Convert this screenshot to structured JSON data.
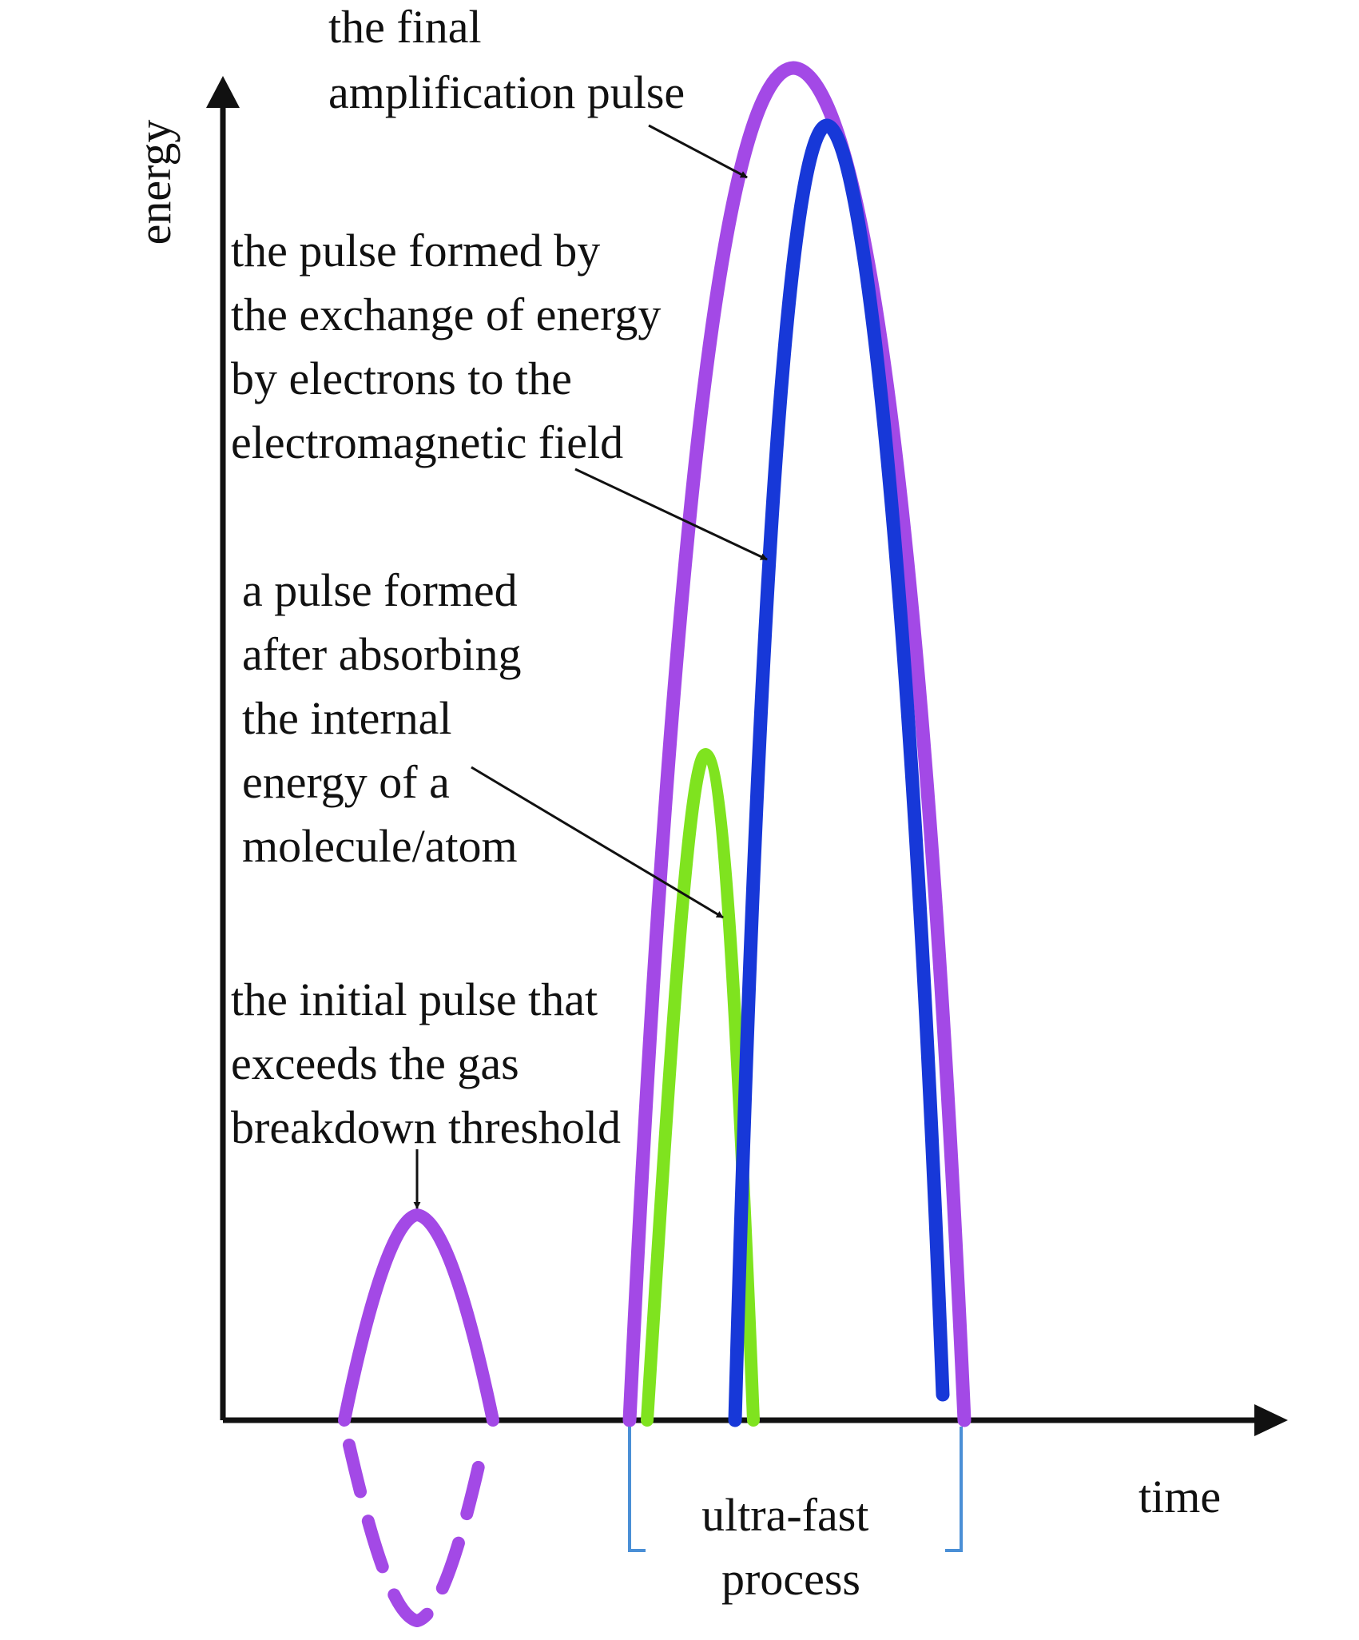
{
  "axes": {
    "y_label": "energy",
    "x_label": "time"
  },
  "annotations": {
    "final_pulse": [
      "the final",
      "amplification pulse"
    ],
    "exchange_pulse": [
      "the pulse formed by",
      "the exchange of energy",
      "by electrons to the",
      "electromagnetic field"
    ],
    "absorbed_pulse": [
      "a pulse formed",
      "after absorbing",
      "the internal",
      "energy of a",
      "molecule/atom"
    ],
    "initial_pulse": [
      "the initial pulse that",
      "exceeds the gas",
      "breakdown threshold"
    ],
    "ultrafast": [
      "ultra-fast",
      "process"
    ]
  },
  "colors": {
    "axis": "#111111",
    "final_pulse": "#a349e6",
    "initial_pulse": "#a349e6",
    "exchange_pulse": "#1738d8",
    "absorbed_pulse": "#7fe31f",
    "bracket": "#4a8fd6",
    "text": "#111111"
  }
}
